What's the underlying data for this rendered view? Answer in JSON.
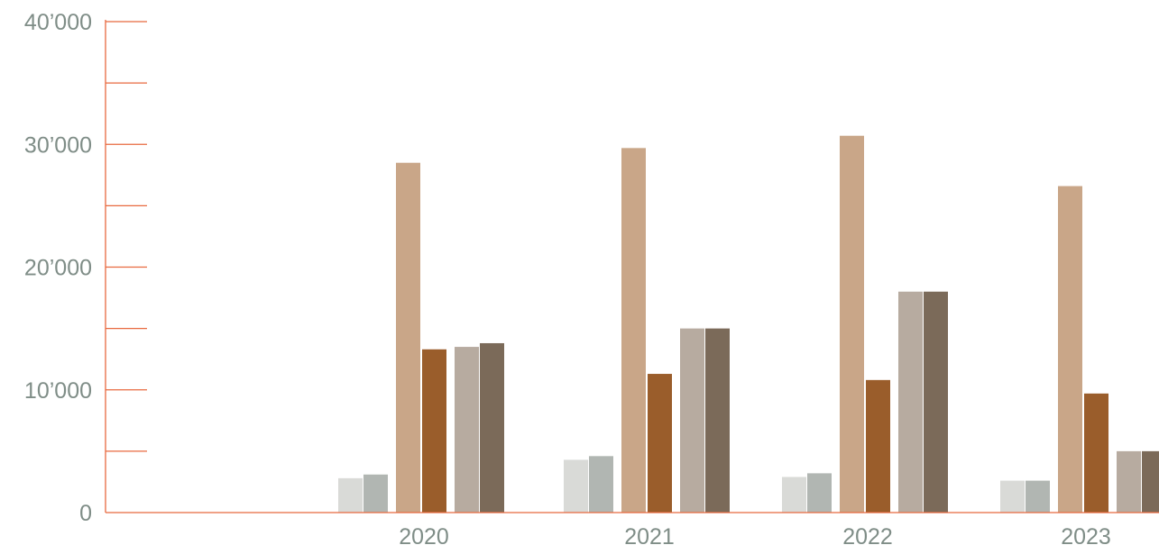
{
  "chart_data": {
    "type": "bar",
    "title": "",
    "xlabel": "",
    "ylabel": "",
    "ylim": [
      0,
      40000
    ],
    "yticks": [
      {
        "value": 0,
        "label": "0"
      },
      {
        "value": 10000,
        "label": "10’000"
      },
      {
        "value": 20000,
        "label": "20’000"
      },
      {
        "value": 30000,
        "label": "30’000"
      },
      {
        "value": 40000,
        "label": "40’000"
      }
    ],
    "minor_ticks": [
      5000,
      15000,
      25000,
      35000
    ],
    "grid": false,
    "legend": "none",
    "axis_color": "#e8693f",
    "categories": [
      "2020",
      "2021",
      "2022",
      "2023"
    ],
    "series": [
      {
        "color": "#d9dad7",
        "values": [
          2800,
          4300,
          2900,
          2600
        ]
      },
      {
        "color": "#b1b6b2",
        "values": [
          3100,
          4600,
          3200,
          2600
        ]
      },
      {
        "color": "#c9a688",
        "values": [
          28500,
          29700,
          30700,
          26600
        ]
      },
      {
        "color": "#9a5d2b",
        "values": [
          13300,
          11300,
          10800,
          9700
        ]
      },
      {
        "color": "#b7aba0",
        "values": [
          13500,
          15000,
          18000,
          5000
        ]
      },
      {
        "color": "#7b6a59",
        "values": [
          13800,
          15000,
          18000,
          5000
        ]
      }
    ]
  }
}
